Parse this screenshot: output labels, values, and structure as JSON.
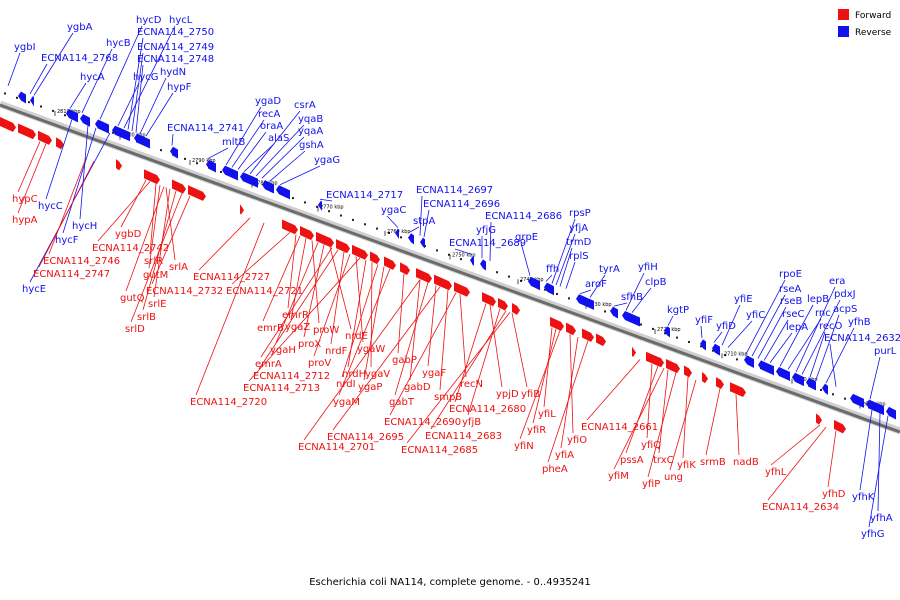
{
  "legend": {
    "forward_label": "Forward",
    "reverse_label": "Reverse",
    "forward_color": "#ee1111",
    "reverse_color": "#1111ee"
  },
  "caption": "Escherichia coli NA114, complete genome. - 0..4935241",
  "ticks": [
    "2810 kbp",
    "2800 kbp",
    "2790 kbp",
    "2780 kbp",
    "2770 kbp",
    "2760 kbp",
    "2750 kbp",
    "2740 kbp",
    "2730 kbp",
    "2720 kbp",
    "2710 kbp",
    "2700 kbp",
    "2690 kbp"
  ],
  "reverse_genes": [
    "ygbI",
    "ygbA",
    "ECNA114_2768",
    "hycA",
    "hycB",
    "hycD",
    "hycG",
    "hycL",
    "ECNA114_2750",
    "ECNA114_2749",
    "ECNA114_2748",
    "hydN",
    "hypF",
    "ECNA114_2741",
    "mltB",
    "ygaD",
    "recA",
    "oraA",
    "alaS",
    "csrA",
    "yqaB",
    "yqaA",
    "gshA",
    "ygaG",
    "ECNA114_2717",
    "ygaC",
    "stpA",
    "ECNA114_2697",
    "ECNA114_2696",
    "ECNA114_2689",
    "yfjG",
    "ECNA114_2686",
    "grpE",
    "ffh",
    "rpsP",
    "yfjA",
    "trmD",
    "rplS",
    "aroF",
    "tyrA",
    "sfhB",
    "yfiH",
    "clpB",
    "kgtP",
    "yfiF",
    "yfiD",
    "yfiE",
    "yfiC",
    "rpoE",
    "rseA",
    "rseB",
    "rseC",
    "lepA",
    "lepB",
    "rnc",
    "era",
    "pdxJ",
    "recO",
    "acpS",
    "yfhB",
    "ECNA114_2632",
    "purL",
    "hycC",
    "hycH",
    "hycF",
    "hycE",
    "yfhK",
    "yfhA",
    "yfhG"
  ],
  "forward_genes": [
    "hypC",
    "hypA",
    "ECNA114_2746",
    "ECNA114_2747",
    "ygbD",
    "ECNA114_2742",
    "srlR",
    "gutM",
    "srlA",
    "gutQ",
    "srlE",
    "srlB",
    "srlD",
    "ECNA114_2727",
    "ECNA114_2732",
    "ECNA114_2721",
    "emrR",
    "emrB",
    "ygaZ",
    "proW",
    "ygaH",
    "proX",
    "nrdE",
    "emrA",
    "ECNA114_2712",
    "nrdF",
    "proV",
    "ygaW",
    "ECNA114_2713",
    "nrdH",
    "ygaV",
    "nrdI",
    "ygaP",
    "gabP",
    "ECNA114_2720",
    "ygaM",
    "gabD",
    "ygaF",
    "gabT",
    "recN",
    "smpB",
    "ypjD",
    "ECNA114_2680",
    "ECNA114_2690",
    "yfjB",
    "yfiB",
    "ECNA114_2683",
    "yfiL",
    "ECNA114_2695",
    "ECNA114_2685",
    "yfiR",
    "ECNA114_2701",
    "yfiO",
    "yfiN",
    "yfiA",
    "pheA",
    "ECNA114_2661",
    "yfiQ",
    "pssA",
    "trxC",
    "yfiK",
    "srmB",
    "nadB",
    "yfiM",
    "ung",
    "yfiP",
    "yfhL",
    "yfhD",
    "ECNA114_2634"
  ]
}
